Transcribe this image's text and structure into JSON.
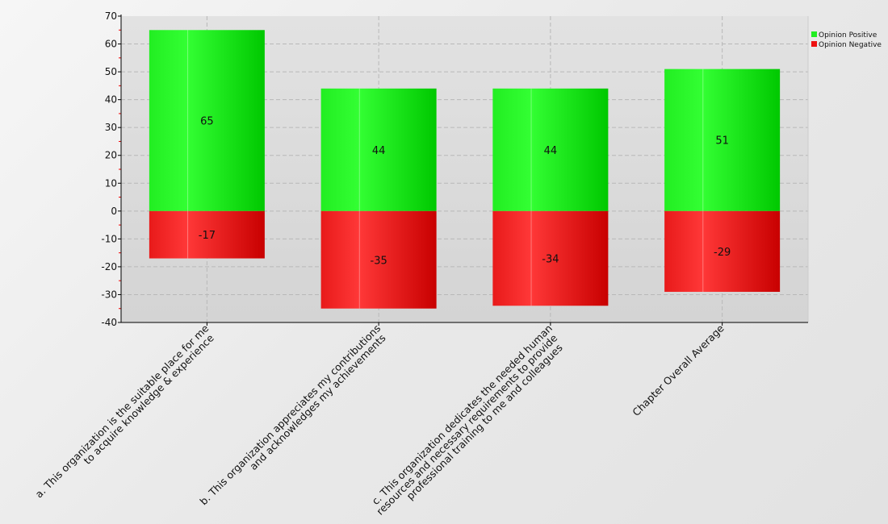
{
  "chart_data": {
    "type": "bar",
    "stacked": true,
    "categories": [
      [
        "a. This organization is the suitable place for me",
        "to acquire knowledge & experience"
      ],
      [
        "b. This organization appreciates my contributions",
        "and acknowledges my achievements"
      ],
      [
        "c. This organization dedicates the needed human",
        "resources and necessary requirements to provide",
        "professional training to me and colleagues"
      ],
      [
        "Chapter Overall Average"
      ]
    ],
    "series": [
      {
        "name": "Opinion Positive",
        "values": [
          65,
          44,
          44,
          51
        ],
        "color": "#00dd00"
      },
      {
        "name": "Opinion Negative",
        "values": [
          -17,
          -35,
          -34,
          -29
        ],
        "color": "#ee0000"
      }
    ],
    "ylim": [
      -40,
      70
    ],
    "yticks": [
      -40,
      -30,
      -20,
      -10,
      0,
      10,
      20,
      30,
      40,
      50,
      60,
      70
    ],
    "grid": true,
    "legend": "top-right",
    "data_labels": true
  }
}
